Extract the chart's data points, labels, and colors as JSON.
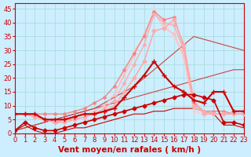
{
  "background_color": "#cceeff",
  "grid_color": "#aadddd",
  "xlabel": "Vent moyen/en rafales ( km/h )",
  "xlabel_color": "#cc0000",
  "xlabel_fontsize": 7.5,
  "tick_color": "#cc0000",
  "tick_fontsize": 6,
  "ylim": [
    0,
    47
  ],
  "xlim": [
    0,
    23
  ],
  "yticks": [
    0,
    5,
    10,
    15,
    20,
    25,
    30,
    35,
    40,
    45
  ],
  "xticks": [
    0,
    1,
    2,
    3,
    4,
    5,
    6,
    7,
    8,
    9,
    10,
    11,
    12,
    13,
    14,
    15,
    16,
    17,
    18,
    19,
    20,
    21,
    22,
    23
  ],
  "series": [
    {
      "x": [
        0,
        1,
        2,
        3,
        4,
        5,
        6,
        7,
        8,
        9,
        10,
        11,
        12,
        13,
        14,
        15,
        16,
        17,
        18,
        19,
        20,
        21,
        22,
        23
      ],
      "y": [
        1,
        4,
        2,
        1,
        1,
        2,
        3,
        4,
        5,
        6,
        7,
        8,
        9,
        10,
        11,
        12,
        13,
        14,
        14,
        13,
        12,
        4,
        4,
        3
      ],
      "color": "#cc0000",
      "lw": 1.2,
      "marker": "D",
      "markersize": 2.5,
      "zorder": 5
    },
    {
      "x": [
        0,
        1,
        2,
        3,
        4,
        5,
        6,
        7,
        8,
        9,
        10,
        11,
        12,
        13,
        14,
        15,
        16,
        17,
        18,
        19,
        20,
        21,
        22,
        23
      ],
      "y": [
        1,
        3,
        1,
        0,
        0,
        1,
        2,
        2,
        3,
        4,
        5,
        6,
        7,
        7,
        8,
        8,
        9,
        9,
        9,
        8,
        7,
        3,
        3,
        2
      ],
      "color": "#cc0000",
      "lw": 0.8,
      "marker": null,
      "markersize": 0,
      "zorder": 3
    },
    {
      "x": [
        0,
        1,
        2,
        3,
        4,
        5,
        6,
        7,
        8,
        9,
        10,
        11,
        12,
        13,
        14,
        15,
        16,
        17,
        18,
        19,
        20,
        21,
        22,
        23
      ],
      "y": [
        7,
        7,
        7,
        5,
        5,
        5,
        6,
        7,
        7,
        8,
        9,
        13,
        17,
        21,
        26,
        21,
        17,
        15,
        12,
        11,
        15,
        15,
        8,
        8
      ],
      "color": "#cc0000",
      "lw": 1.5,
      "marker": "+",
      "markersize": 4,
      "zorder": 5
    },
    {
      "x": [
        0,
        1,
        2,
        3,
        4,
        5,
        6,
        7,
        8,
        9,
        10,
        11,
        12,
        13,
        14,
        15,
        16,
        17,
        18,
        19,
        20,
        21,
        22,
        23
      ],
      "y": [
        7,
        7,
        6,
        5,
        4,
        5,
        5,
        6,
        7,
        8,
        10,
        15,
        20,
        26,
        37,
        38,
        41,
        32,
        12,
        7,
        7,
        7,
        7,
        7
      ],
      "color": "#ffaaaa",
      "lw": 1.2,
      "marker": "D",
      "markersize": 2.5,
      "zorder": 4
    },
    {
      "x": [
        0,
        1,
        2,
        3,
        4,
        5,
        6,
        7,
        8,
        9,
        10,
        11,
        12,
        13,
        14,
        15,
        16,
        17,
        18,
        19,
        20,
        21,
        22,
        23
      ],
      "y": [
        7,
        7,
        6,
        5,
        4,
        4,
        5,
        6,
        7,
        9,
        12,
        18,
        25,
        32,
        43,
        40,
        39,
        30,
        10,
        8,
        7,
        7,
        7,
        7
      ],
      "color": "#ffaaaa",
      "lw": 1.0,
      "marker": "D",
      "markersize": 2.0,
      "zorder": 4
    },
    {
      "x": [
        0,
        1,
        2,
        3,
        4,
        5,
        6,
        7,
        8,
        9,
        10,
        11,
        12,
        13,
        14,
        15,
        16,
        17,
        18,
        19,
        20,
        21,
        22,
        23
      ],
      "y": [
        7,
        7,
        6,
        5,
        4,
        4,
        5,
        6,
        8,
        10,
        14,
        21,
        28,
        36,
        44,
        38,
        36,
        28,
        9,
        8,
        7,
        7,
        7,
        7
      ],
      "color": "#ffbbbb",
      "lw": 0.9,
      "marker": "D",
      "markersize": 1.5,
      "zorder": 3
    },
    {
      "x": [
        0,
        1,
        2,
        3,
        4,
        5,
        6,
        7,
        8,
        9,
        10,
        11,
        12,
        13,
        14,
        15,
        16,
        17,
        18,
        19,
        20,
        21,
        22,
        23
      ],
      "y": [
        7,
        7,
        6,
        5,
        4,
        4,
        5,
        6,
        8,
        10,
        14,
        22,
        30,
        35,
        45,
        40,
        35,
        27,
        8,
        7,
        7,
        7,
        7,
        7
      ],
      "color": "#ffcccc",
      "lw": 0.8,
      "marker": "D",
      "markersize": 1.5,
      "zorder": 2
    },
    {
      "x": [
        0,
        1,
        2,
        3,
        4,
        5,
        6,
        7,
        8,
        9,
        10,
        11,
        12,
        13,
        14,
        15,
        16,
        17,
        18,
        19,
        20,
        21,
        22,
        23
      ],
      "y": [
        7,
        7,
        7,
        7,
        7,
        7,
        8,
        9,
        11,
        13,
        17,
        23,
        29,
        35,
        44,
        41,
        42,
        31,
        11,
        8,
        8,
        8,
        7,
        7
      ],
      "color": "#ee8888",
      "lw": 1.0,
      "marker": "D",
      "markersize": 2.0,
      "zorder": 3
    },
    {
      "x": [
        0,
        1,
        2,
        3,
        4,
        5,
        6,
        7,
        8,
        9,
        10,
        11,
        12,
        13,
        14,
        15,
        16,
        17,
        18,
        19,
        20,
        21,
        22,
        23
      ],
      "y": [
        1,
        2,
        3,
        4,
        5,
        6,
        7,
        8,
        9,
        10,
        11,
        12,
        13,
        14,
        15,
        16,
        17,
        18,
        19,
        20,
        21,
        22,
        23,
        23
      ],
      "color": "#cc4444",
      "lw": 0.8,
      "marker": null,
      "markersize": 0,
      "zorder": 2
    },
    {
      "x": [
        0,
        1,
        2,
        3,
        4,
        5,
        6,
        7,
        8,
        9,
        10,
        11,
        12,
        13,
        14,
        15,
        16,
        17,
        18,
        19,
        20,
        21,
        22,
        23
      ],
      "y": [
        1,
        2,
        3,
        4,
        5,
        6,
        7,
        8,
        9,
        11,
        13,
        15,
        17,
        20,
        23,
        26,
        29,
        32,
        35,
        34,
        33,
        32,
        31,
        30
      ],
      "color": "#cc4444",
      "lw": 0.8,
      "marker": null,
      "markersize": 0,
      "zorder": 2
    }
  ]
}
